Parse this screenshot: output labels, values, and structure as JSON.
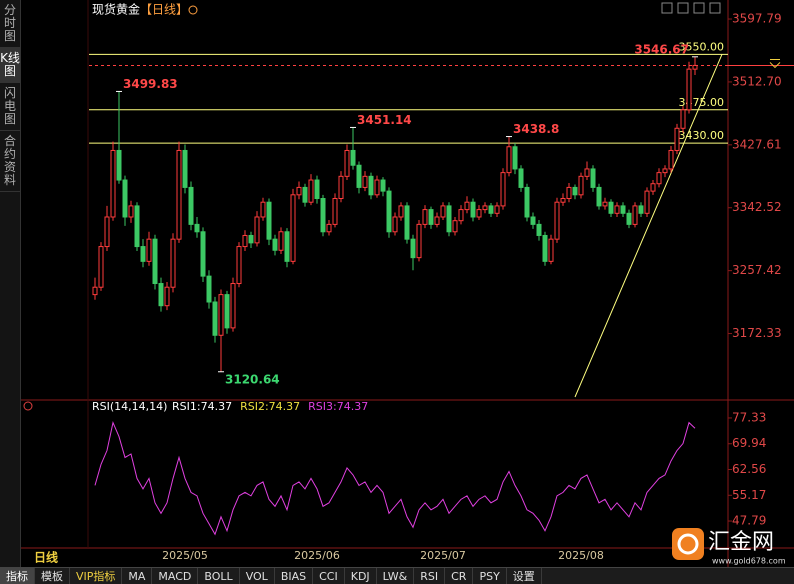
{
  "ui": {
    "sidebar": [
      "分时图",
      "K线图",
      "闪电图",
      "合约资料"
    ],
    "period": "日线",
    "toolbar": [
      "指标",
      "模板",
      "VIP指标",
      "MA",
      "MACD",
      "BOLL",
      "VOL",
      "BIAS",
      "CCI",
      "KDJ",
      "LW&",
      "RSI",
      "CR",
      "PSY",
      "设置"
    ],
    "watermark": {
      "brand": "汇金网",
      "url": "www.gold678.com"
    }
  },
  "chart_data": [
    {
      "type": "candlestick",
      "title": "现货黄金",
      "subtitle": "【日线】",
      "up_color": "#ff3c3c",
      "down_color": "#3cc864",
      "categories": [
        null,
        null,
        null,
        null,
        null,
        null,
        null,
        null,
        null,
        null,
        null,
        null,
        null,
        null,
        null,
        "2025/05",
        null,
        null,
        null,
        null,
        null,
        null,
        null,
        null,
        null,
        null,
        null,
        null,
        null,
        null,
        null,
        null,
        null,
        null,
        null,
        null,
        null,
        "2025/06",
        null,
        null,
        null,
        null,
        null,
        null,
        null,
        null,
        null,
        null,
        null,
        null,
        null,
        null,
        null,
        null,
        null,
        null,
        null,
        null,
        "2025/07",
        null,
        null,
        null,
        null,
        null,
        null,
        null,
        null,
        null,
        null,
        null,
        null,
        null,
        null,
        null,
        null,
        null,
        null,
        null,
        null,
        null,
        null,
        "2025/08",
        null,
        null,
        null,
        null,
        null,
        null,
        null,
        null,
        null,
        null,
        null,
        null,
        null,
        null,
        null,
        null,
        null,
        null,
        null
      ],
      "candles": [
        [
          3225,
          3248,
          3218,
          3235
        ],
        [
          3235,
          3296,
          3230,
          3290
        ],
        [
          3290,
          3345,
          3284,
          3330
        ],
        [
          3330,
          3432,
          3325,
          3420
        ],
        [
          3420,
          3499.83,
          3375,
          3380
        ],
        [
          3380,
          3386,
          3318,
          3330
        ],
        [
          3330,
          3352,
          3322,
          3345
        ],
        [
          3345,
          3350,
          3284,
          3290
        ],
        [
          3290,
          3300,
          3262,
          3270
        ],
        [
          3270,
          3310,
          3264,
          3300
        ],
        [
          3300,
          3306,
          3232,
          3240
        ],
        [
          3240,
          3248,
          3202,
          3210
        ],
        [
          3210,
          3242,
          3204,
          3235
        ],
        [
          3235,
          3308,
          3228,
          3300
        ],
        [
          3300,
          3432,
          3295,
          3420
        ],
        [
          3420,
          3428,
          3362,
          3370
        ],
        [
          3370,
          3378,
          3312,
          3320
        ],
        [
          3320,
          3330,
          3302,
          3310
        ],
        [
          3310,
          3316,
          3242,
          3250
        ],
        [
          3250,
          3258,
          3206,
          3215
        ],
        [
          3215,
          3222,
          3160,
          3170
        ],
        [
          3170,
          3232,
          3120.64,
          3225
        ],
        [
          3225,
          3230,
          3172,
          3180
        ],
        [
          3180,
          3248,
          3175,
          3240
        ],
        [
          3240,
          3296,
          3235,
          3290
        ],
        [
          3290,
          3312,
          3284,
          3305
        ],
        [
          3305,
          3310,
          3288,
          3295
        ],
        [
          3295,
          3338,
          3290,
          3330
        ],
        [
          3330,
          3356,
          3325,
          3350
        ],
        [
          3350,
          3355,
          3292,
          3300
        ],
        [
          3300,
          3306,
          3278,
          3285
        ],
        [
          3285,
          3316,
          3280,
          3310
        ],
        [
          3310,
          3315,
          3262,
          3270
        ],
        [
          3270,
          3368,
          3266,
          3360
        ],
        [
          3360,
          3378,
          3354,
          3370
        ],
        [
          3370,
          3375,
          3344,
          3350
        ],
        [
          3350,
          3388,
          3346,
          3380
        ],
        [
          3380,
          3386,
          3348,
          3355
        ],
        [
          3355,
          3360,
          3304,
          3310
        ],
        [
          3310,
          3326,
          3305,
          3320
        ],
        [
          3320,
          3362,
          3316,
          3355
        ],
        [
          3355,
          3392,
          3350,
          3385
        ],
        [
          3385,
          3428,
          3380,
          3420
        ],
        [
          3420,
          3451.14,
          3394,
          3400
        ],
        [
          3400,
          3405,
          3362,
          3370
        ],
        [
          3370,
          3392,
          3365,
          3385
        ],
        [
          3385,
          3390,
          3354,
          3360
        ],
        [
          3360,
          3386,
          3356,
          3380
        ],
        [
          3380,
          3384,
          3358,
          3365
        ],
        [
          3365,
          3370,
          3302,
          3310
        ],
        [
          3310,
          3336,
          3305,
          3330
        ],
        [
          3330,
          3350,
          3325,
          3345
        ],
        [
          3345,
          3350,
          3294,
          3300
        ],
        [
          3300,
          3306,
          3258,
          3275
        ],
        [
          3275,
          3326,
          3270,
          3320
        ],
        [
          3320,
          3346,
          3315,
          3340
        ],
        [
          3340,
          3344,
          3314,
          3320
        ],
        [
          3320,
          3336,
          3316,
          3330
        ],
        [
          3330,
          3350,
          3326,
          3345
        ],
        [
          3345,
          3350,
          3304,
          3310
        ],
        [
          3310,
          3330,
          3305,
          3325
        ],
        [
          3325,
          3346,
          3320,
          3340
        ],
        [
          3340,
          3358,
          3335,
          3350
        ],
        [
          3350,
          3355,
          3324,
          3330
        ],
        [
          3330,
          3346,
          3326,
          3340
        ],
        [
          3340,
          3350,
          3335,
          3345
        ],
        [
          3345,
          3349,
          3330,
          3335
        ],
        [
          3335,
          3350,
          3330,
          3345
        ],
        [
          3345,
          3396,
          3340,
          3390
        ],
        [
          3390,
          3438.8,
          3385,
          3425
        ],
        [
          3425,
          3430,
          3388,
          3395
        ],
        [
          3395,
          3400,
          3364,
          3370
        ],
        [
          3370,
          3375,
          3324,
          3330
        ],
        [
          3330,
          3336,
          3314,
          3320
        ],
        [
          3320,
          3326,
          3298,
          3305
        ],
        [
          3305,
          3310,
          3264,
          3270
        ],
        [
          3270,
          3306,
          3266,
          3300
        ],
        [
          3300,
          3356,
          3295,
          3350
        ],
        [
          3350,
          3362,
          3345,
          3355
        ],
        [
          3355,
          3376,
          3350,
          3370
        ],
        [
          3370,
          3374,
          3354,
          3360
        ],
        [
          3360,
          3390,
          3355,
          3385
        ],
        [
          3385,
          3405,
          3380,
          3395
        ],
        [
          3395,
          3400,
          3364,
          3370
        ],
        [
          3370,
          3375,
          3340,
          3345
        ],
        [
          3345,
          3356,
          3340,
          3350
        ],
        [
          3350,
          3354,
          3330,
          3335
        ],
        [
          3335,
          3350,
          3330,
          3345
        ],
        [
          3345,
          3350,
          3330,
          3335
        ],
        [
          3335,
          3340,
          3315,
          3320
        ],
        [
          3320,
          3350,
          3316,
          3345
        ],
        [
          3345,
          3350,
          3330,
          3335
        ],
        [
          3335,
          3370,
          3330,
          3365
        ],
        [
          3365,
          3380,
          3360,
          3375
        ],
        [
          3375,
          3396,
          3370,
          3390
        ],
        [
          3390,
          3400,
          3384,
          3395
        ],
        [
          3395,
          3426,
          3390,
          3420
        ],
        [
          3420,
          3456,
          3415,
          3450
        ],
        [
          3450,
          3480,
          3444,
          3475
        ],
        [
          3475,
          3540,
          3470,
          3530
        ],
        [
          3530,
          3546.67,
          3522,
          3535
        ]
      ],
      "ylim": [
        3086.5,
        3610
      ],
      "yticks": [
        3597.79,
        {
          "value": 3512.7,
          "label": "3512.70"
        },
        3427.61,
        3342.52,
        3257.42,
        3172.33
      ],
      "hlines": [
        {
          "value": 3550,
          "label": "3550.00"
        },
        {
          "value": 3475,
          "label": "3475.00"
        },
        {
          "value": 3430,
          "label": "3430.00"
        }
      ],
      "hline_color": "#ffff80",
      "trendline": {
        "x": [
          80,
          104.5
        ],
        "y": [
          3086.5,
          3550
        ]
      }
    },
    {
      "type": "line",
      "title": "RSI(14,14,14)",
      "legend": [
        {
          "text": "RSI1:74.37",
          "color": "#ffffff"
        },
        {
          "text": "RSI2:74.37",
          "color": "#f0e040"
        },
        {
          "text": "RSI3:74.37",
          "color": "#e040e0"
        }
      ],
      "series": [
        {
          "name": "RSI3",
          "color": "#e040e0",
          "values": [
            58,
            64,
            68,
            76,
            72,
            66,
            67,
            60,
            57,
            60,
            53,
            50,
            53,
            60,
            66,
            60,
            56,
            55,
            50,
            47,
            44,
            49,
            45,
            51,
            55,
            56,
            55,
            58,
            59,
            54,
            52,
            55,
            51,
            58,
            59,
            57,
            60,
            57,
            52,
            53,
            56,
            59,
            63,
            61,
            58,
            59,
            56,
            58,
            56,
            50,
            52,
            54,
            49,
            46,
            51,
            53,
            51,
            52,
            54,
            50,
            52,
            54,
            55,
            52,
            54,
            55,
            53,
            54,
            59,
            62,
            58,
            55,
            51,
            50,
            48,
            45,
            49,
            55,
            56,
            58,
            57,
            60,
            61,
            57,
            53,
            54,
            51,
            53,
            51,
            49,
            53,
            51,
            56,
            58,
            60,
            61,
            65,
            68,
            70,
            76,
            74.37
          ]
        }
      ],
      "ylim": [
        40.06,
        81.33
      ],
      "yticks": [
        77.33,
        69.94,
        62.56,
        55.17,
        47.79
      ]
    }
  ]
}
